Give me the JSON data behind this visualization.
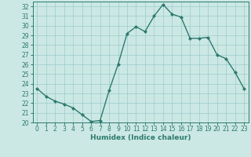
{
  "x": [
    0,
    1,
    2,
    3,
    4,
    5,
    6,
    7,
    8,
    9,
    10,
    11,
    12,
    13,
    14,
    15,
    16,
    17,
    18,
    19,
    20,
    21,
    22,
    23
  ],
  "y": [
    23.5,
    22.7,
    22.2,
    21.9,
    21.5,
    20.8,
    20.1,
    20.2,
    23.3,
    26.0,
    29.2,
    29.9,
    29.4,
    31.0,
    32.2,
    31.2,
    30.9,
    28.7,
    28.7,
    28.8,
    27.0,
    26.6,
    25.2,
    23.5
  ],
  "line_color": "#2d7a6e",
  "marker": "D",
  "marker_size": 2.0,
  "bg_color": "#cce8e4",
  "grid_color": "#99cccc",
  "xlabel": "Humidex (Indice chaleur)",
  "xlim": [
    -0.5,
    23.5
  ],
  "ylim": [
    20,
    32.5
  ],
  "yticks": [
    20,
    21,
    22,
    23,
    24,
    25,
    26,
    27,
    28,
    29,
    30,
    31,
    32
  ],
  "xticks": [
    0,
    1,
    2,
    3,
    4,
    5,
    6,
    7,
    8,
    9,
    10,
    11,
    12,
    13,
    14,
    15,
    16,
    17,
    18,
    19,
    20,
    21,
    22,
    23
  ],
  "tick_label_fontsize": 5.5,
  "xlabel_fontsize": 6.5,
  "line_width": 1.0
}
